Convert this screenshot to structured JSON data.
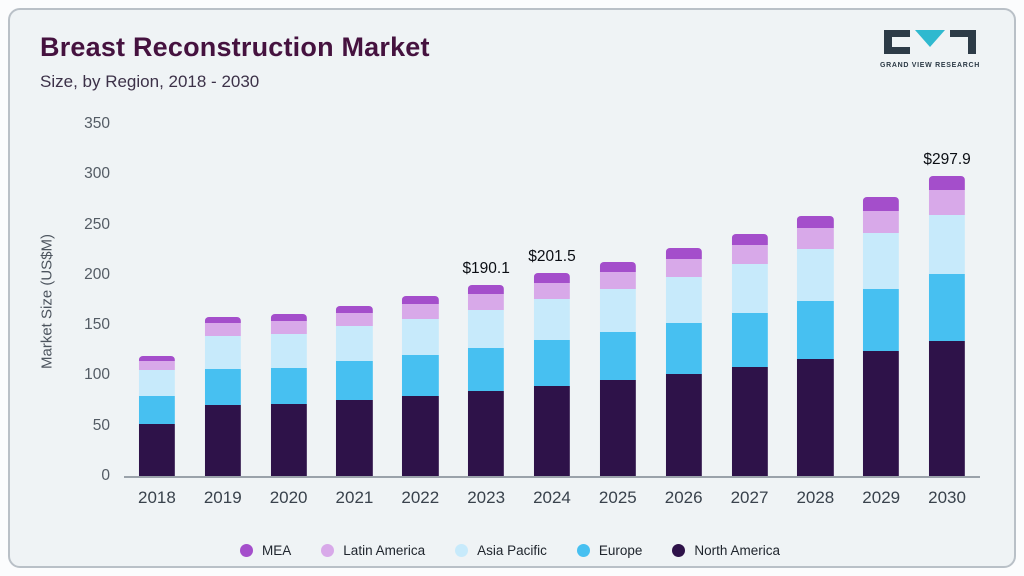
{
  "header": {
    "title": "Breast Reconstruction Market",
    "subtitle": "Size, by Region, 2018 - 2030"
  },
  "logo": {
    "name": "grand-view-research",
    "text": "GRAND VIEW RESEARCH",
    "triangle_color": "#2fb9cf",
    "mark_color": "#2d3b47"
  },
  "theme": {
    "card_background": "#eff3f5",
    "card_border": "#b9c0c7",
    "title_color": "#45123f",
    "axis_text_color": "#535b64"
  },
  "chart_data": {
    "type": "bar",
    "stacked": true,
    "title": "Breast Reconstruction Market Size, by Region, 2018 - 2030",
    "xlabel": "",
    "ylabel": "Market Size (US$M)",
    "ylim": [
      0,
      350
    ],
    "yticks": [
      0,
      50,
      100,
      150,
      200,
      250,
      300,
      350
    ],
    "grid": false,
    "legend_position": "bottom",
    "categories": [
      "2018",
      "2019",
      "2020",
      "2021",
      "2022",
      "2023",
      "2024",
      "2025",
      "2026",
      "2027",
      "2028",
      "2029",
      "2030"
    ],
    "series": [
      {
        "name": "North America",
        "color": "#2e1249",
        "values": [
          52,
          71,
          72,
          76,
          80,
          85,
          90,
          95,
          101,
          108,
          116,
          124,
          134
        ]
      },
      {
        "name": "Europe",
        "color": "#47c0f1",
        "values": [
          28,
          35,
          35,
          38,
          40,
          42,
          45,
          48,
          51,
          54,
          58,
          62,
          67
        ]
      },
      {
        "name": "Asia Pacific",
        "color": "#c7eafb",
        "values": [
          25,
          33,
          34,
          35,
          36,
          38,
          41,
          43,
          46,
          49,
          52,
          56,
          59
        ]
      },
      {
        "name": "Latin America",
        "color": "#d8a9e9",
        "values": [
          9,
          13,
          13,
          13,
          15,
          16,
          16,
          17,
          18,
          19,
          21,
          22,
          24
        ]
      },
      {
        "name": "MEA",
        "color": "#a44ecb",
        "values": [
          5,
          6,
          7,
          7,
          8,
          9.1,
          9.5,
          10,
          11,
          11,
          12,
          13,
          13.9
        ]
      }
    ],
    "totals": [
      119,
      158,
      161,
      169,
      179,
      190.1,
      201.5,
      213,
      227,
      241,
      259,
      277,
      297.9
    ],
    "bar_labels": {
      "2023": "$190.1",
      "2024": "$201.5",
      "2030": "$297.9"
    },
    "legend": [
      "MEA",
      "Latin America",
      "Asia Pacific",
      "Europe",
      "North America"
    ]
  }
}
